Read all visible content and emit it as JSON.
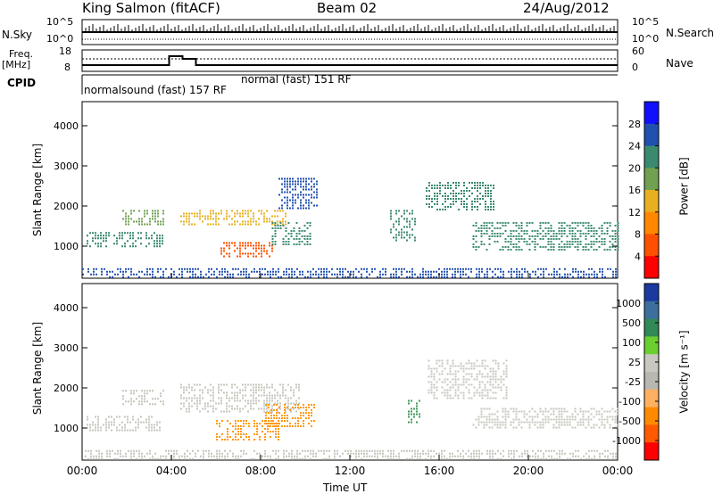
{
  "header": {
    "station": "King Salmon (fitACF)",
    "beam": "Beam 02",
    "date": "24/Aug/2012"
  },
  "left_labels": {
    "nsky": "N.Sky",
    "freq": "Freq.",
    "mhz": "[MHz]",
    "cpid": "CPID"
  },
  "right_labels": {
    "nsearch": "N.Search",
    "nave": "Nave"
  },
  "noise_axis": {
    "top_tick": "10^5",
    "bottom_tick": "10^0",
    "right_top_tick": "10^5",
    "right_bottom_tick": "10^0"
  },
  "freq_axis": {
    "left_ticks": [
      "18",
      "8"
    ],
    "right_ticks": [
      "60",
      "0"
    ]
  },
  "cpid_labels": [
    {
      "text": "normalsound (fast) 157 RF",
      "time_hr": 0.0
    },
    {
      "text": "normal (fast) 151 RF",
      "time_hr": 6.0
    }
  ],
  "time_axis": {
    "label": "Time UT",
    "ticks": [
      "00:00",
      "04:00",
      "08:00",
      "12:00",
      "16:00",
      "20:00",
      "00:00"
    ]
  },
  "chart_data": [
    {
      "type": "heatmap",
      "panel": "power",
      "ylabel": "Slant Range [km]",
      "ylim": [
        200,
        4600
      ],
      "yticks": [
        "1000",
        "2000",
        "3000",
        "4000"
      ],
      "xlim_hours": [
        0,
        24
      ],
      "colorbar_label": "Power [dB]",
      "colorbar_ticks": [
        "4",
        "8",
        "12",
        "16",
        "20",
        "24",
        "28"
      ],
      "colorbar_colors": [
        "#1010ff",
        "#2050b0",
        "#3a8a70",
        "#70a050",
        "#e8b020",
        "#ff8800",
        "#ff5000",
        "#ff0000"
      ],
      "regions": [
        {
          "t0": 0.2,
          "t1": 3.6,
          "r0": 1000,
          "r1": 1350,
          "level": 2
        },
        {
          "t0": 1.8,
          "t1": 3.7,
          "r0": 1550,
          "r1": 1900,
          "level": 3
        },
        {
          "t0": 4.4,
          "t1": 9.2,
          "r0": 1550,
          "r1": 1900,
          "level": 4
        },
        {
          "t0": 6.2,
          "t1": 8.6,
          "r0": 700,
          "r1": 1100,
          "level": 6
        },
        {
          "t0": 8.5,
          "t1": 10.3,
          "r0": 1000,
          "r1": 1600,
          "level": 2
        },
        {
          "t0": 8.8,
          "t1": 10.5,
          "r0": 1900,
          "r1": 2700,
          "level": 1
        },
        {
          "t0": 13.8,
          "t1": 15.0,
          "r0": 1100,
          "r1": 1900,
          "level": 2
        },
        {
          "t0": 15.4,
          "t1": 18.5,
          "r0": 1900,
          "r1": 2600,
          "level": 2
        },
        {
          "t0": 17.5,
          "t1": 24.0,
          "r0": 900,
          "r1": 1600,
          "level": 2
        },
        {
          "t0": 0.0,
          "t1": 24.0,
          "r0": 200,
          "r1": 450,
          "level": 1
        }
      ]
    },
    {
      "type": "heatmap",
      "panel": "velocity",
      "ylabel": "Slant Range [km]",
      "ylim": [
        200,
        4600
      ],
      "yticks": [
        "1000",
        "2000",
        "3000",
        "4000"
      ],
      "xlim_hours": [
        0,
        24
      ],
      "colorbar_label": "Velocity [m s⁻¹]",
      "colorbar_ticks": [
        "1000",
        "500",
        "100",
        "25",
        "-25",
        "-100",
        "-500",
        "-1000"
      ],
      "colorbar_colors": [
        "#1a3aa0",
        "#3d6f9e",
        "#2f8a55",
        "#6ccf30",
        "#c8c8c0",
        "#b8b8b0",
        "#ffb060",
        "#ff8a00",
        "#ff5a00",
        "#ff0000"
      ],
      "regions": [
        {
          "t0": 0.2,
          "t1": 3.6,
          "r0": 950,
          "r1": 1300,
          "level": "gray"
        },
        {
          "t0": 1.8,
          "t1": 3.7,
          "r0": 1550,
          "r1": 1950,
          "level": "gray"
        },
        {
          "t0": 4.4,
          "t1": 9.8,
          "r0": 1400,
          "r1": 2100,
          "level": "gray"
        },
        {
          "t0": 6.0,
          "t1": 8.8,
          "r0": 700,
          "r1": 1200,
          "level": "orange"
        },
        {
          "t0": 8.2,
          "t1": 10.4,
          "r0": 1000,
          "r1": 1600,
          "level": "orange"
        },
        {
          "t0": 14.6,
          "t1": 15.2,
          "r0": 1100,
          "r1": 1700,
          "level": "green"
        },
        {
          "t0": 15.5,
          "t1": 19.0,
          "r0": 1700,
          "r1": 2700,
          "level": "gray"
        },
        {
          "t0": 17.5,
          "t1": 24.0,
          "r0": 1000,
          "r1": 1500,
          "level": "gray"
        },
        {
          "t0": 0.0,
          "t1": 24.0,
          "r0": 200,
          "r1": 450,
          "level": "gray"
        }
      ]
    }
  ]
}
